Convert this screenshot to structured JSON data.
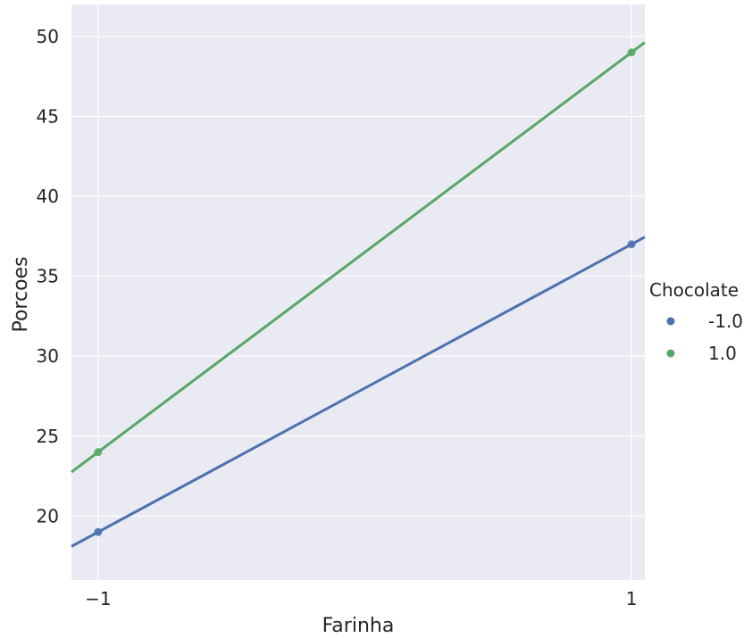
{
  "chart_data": {
    "type": "scatter",
    "xlabel": "Farinha",
    "ylabel": "Porcoes",
    "xlim": [
      -1.1,
      1.05
    ],
    "ylim": [
      16,
      52
    ],
    "x_ticks": [
      -1,
      1
    ],
    "x_tick_labels": [
      "−1",
      "1"
    ],
    "y_ticks": [
      20,
      25,
      30,
      35,
      40,
      45,
      50
    ],
    "y_tick_labels": [
      "20",
      "25",
      "30",
      "35",
      "40",
      "45",
      "50"
    ],
    "grid": true,
    "legend": {
      "title": "Chocolate",
      "placement": "right"
    },
    "series": [
      {
        "name": "-1.0",
        "color": "#4c72b0",
        "points": [
          {
            "x": -1,
            "y": 19
          },
          {
            "x": 1,
            "y": 37
          }
        ],
        "fit": {
          "slope": 9,
          "intercept": 28
        }
      },
      {
        "name": "1.0",
        "color": "#55a868",
        "points": [
          {
            "x": -1,
            "y": 24
          },
          {
            "x": 1,
            "y": 49
          }
        ],
        "fit": {
          "slope": 12.5,
          "intercept": 36.5
        }
      }
    ]
  }
}
